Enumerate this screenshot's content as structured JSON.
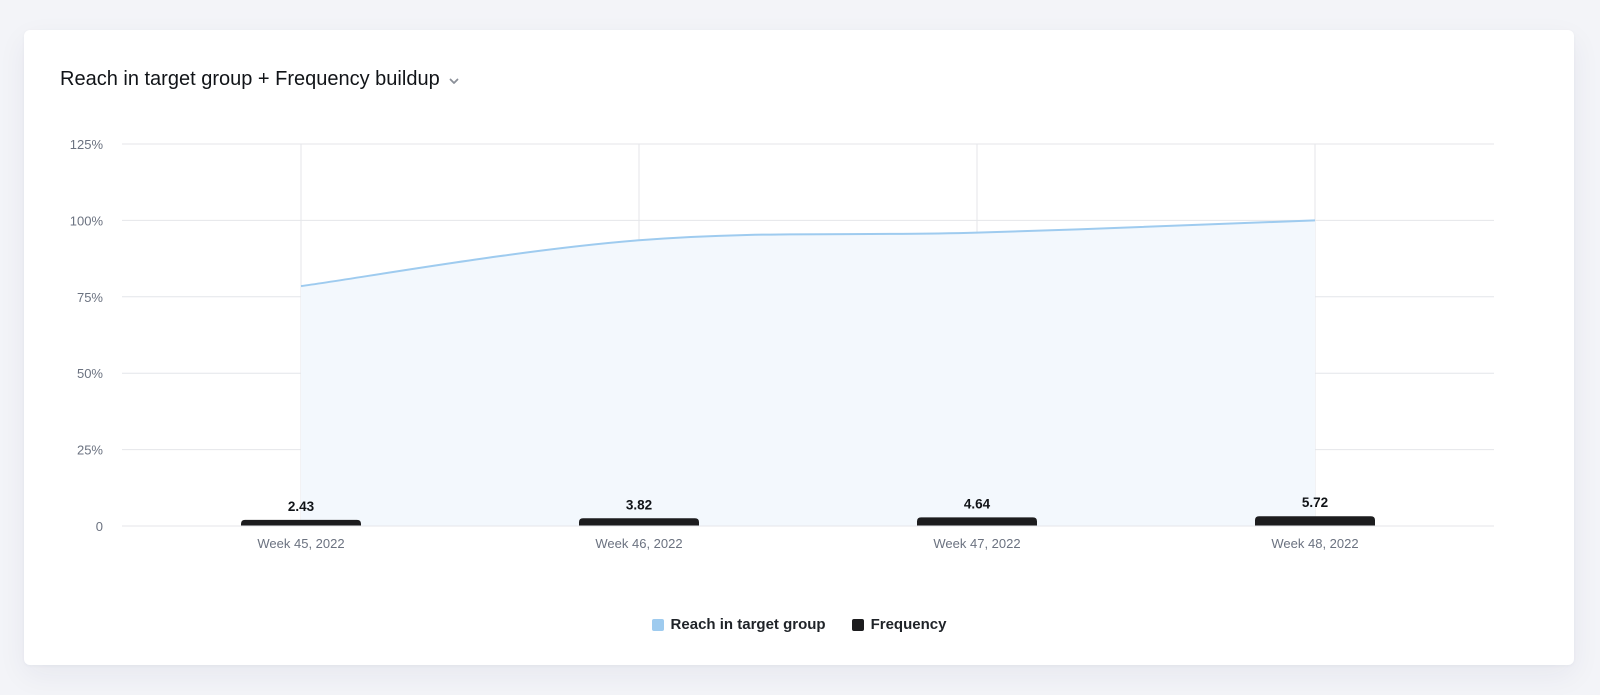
{
  "header": {
    "title": "Reach in target group + Frequency buildup",
    "dropdown_icon": "chevron-down-icon"
  },
  "colors": {
    "reach_line": "#9ecbef",
    "reach_fill": "#f3f8fd",
    "frequency_bar": "#1c1c1e",
    "grid": "#e4e6ea"
  },
  "chart_data": {
    "type": "line+bar",
    "categories": [
      "Week 45, 2022",
      "Week 46, 2022",
      "Week 47, 2022",
      "Week 48, 2022"
    ],
    "y_ticks": [
      "0",
      "25%",
      "50%",
      "75%",
      "100%",
      "125%"
    ],
    "ylim": [
      0,
      125
    ],
    "grid": true,
    "legend_position": "bottom-center",
    "series": [
      {
        "name": "Reach in target group",
        "type": "area-line",
        "values": [
          78.5,
          93.5,
          96.0,
          100.0
        ]
      },
      {
        "name": "Frequency",
        "type": "bar",
        "values": [
          2.43,
          3.82,
          4.64,
          5.72
        ],
        "labels": [
          "2.43",
          "3.82",
          "4.64",
          "5.72"
        ]
      }
    ]
  },
  "legend": {
    "items": [
      {
        "label": "Reach in target group"
      },
      {
        "label": "Frequency"
      }
    ]
  }
}
